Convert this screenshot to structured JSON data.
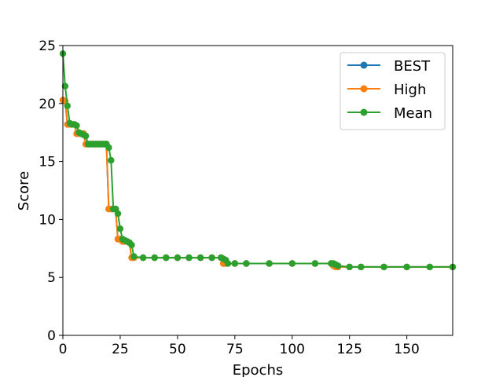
{
  "chart_data": {
    "type": "line",
    "xlabel": "Epochs",
    "ylabel": "Score",
    "xlim": [
      0,
      170
    ],
    "ylim": [
      0,
      25
    ],
    "xticks": [
      0,
      25,
      50,
      75,
      100,
      125,
      150
    ],
    "yticks": [
      0,
      5,
      10,
      15,
      20,
      25
    ],
    "grid": false,
    "legend_position": "top-right",
    "series": [
      {
        "name": "BEST",
        "color": "#1f77b4",
        "marker": "circle",
        "x": [
          0,
          1,
          2,
          3,
          4,
          5,
          6,
          7,
          8,
          9,
          10,
          11,
          12,
          13,
          14,
          15,
          16,
          17,
          18,
          19,
          20,
          21,
          22,
          23,
          24,
          25,
          26,
          27,
          28,
          29,
          30,
          31,
          35,
          40,
          45,
          50,
          55,
          60,
          65,
          69,
          70,
          71,
          75,
          80,
          90,
          100,
          110,
          117,
          118,
          119,
          120,
          125,
          130,
          140,
          150,
          160,
          170
        ],
        "y": [
          20.3,
          20.2,
          18.2,
          18.2,
          18.2,
          18.2,
          17.4,
          17.4,
          17.4,
          17.4,
          16.5,
          16.5,
          16.5,
          16.5,
          16.5,
          16.5,
          16.5,
          16.5,
          16.5,
          16.5,
          10.9,
          10.9,
          10.9,
          10.9,
          8.3,
          8.3,
          8.1,
          8.1,
          8.1,
          8.0,
          6.7,
          6.7,
          6.7,
          6.7,
          6.7,
          6.7,
          6.7,
          6.7,
          6.7,
          6.7,
          6.2,
          6.2,
          6.2,
          6.2,
          6.2,
          6.2,
          6.2,
          6.2,
          6.0,
          5.9,
          5.9,
          5.9,
          5.9,
          5.9,
          5.9,
          5.9,
          5.9
        ]
      },
      {
        "name": "High",
        "color": "#ff7f0e",
        "marker": "circle",
        "x": [
          0,
          1,
          2,
          3,
          4,
          5,
          6,
          7,
          8,
          9,
          10,
          11,
          12,
          13,
          14,
          15,
          16,
          17,
          18,
          19,
          20,
          21,
          22,
          23,
          24,
          25,
          26,
          27,
          28,
          29,
          30,
          31,
          35,
          40,
          45,
          50,
          55,
          60,
          65,
          69,
          70,
          71,
          75,
          80,
          90,
          100,
          110,
          117,
          118,
          119,
          120,
          125,
          130,
          140,
          150,
          160,
          170
        ],
        "y": [
          20.3,
          20.2,
          18.2,
          18.2,
          18.2,
          18.2,
          17.4,
          17.4,
          17.4,
          17.4,
          16.5,
          16.5,
          16.5,
          16.5,
          16.5,
          16.5,
          16.5,
          16.5,
          16.5,
          16.5,
          10.9,
          10.9,
          10.9,
          10.9,
          8.3,
          8.3,
          8.1,
          8.1,
          8.1,
          8.0,
          6.7,
          6.7,
          6.7,
          6.7,
          6.7,
          6.7,
          6.7,
          6.7,
          6.7,
          6.7,
          6.2,
          6.2,
          6.2,
          6.2,
          6.2,
          6.2,
          6.2,
          6.2,
          6.0,
          5.9,
          5.9,
          5.9,
          5.9,
          5.9,
          5.9,
          5.9,
          5.9
        ]
      },
      {
        "name": "Mean",
        "color": "#2ca02c",
        "marker": "circle",
        "x": [
          0,
          1,
          2,
          3,
          4,
          5,
          6,
          7,
          8,
          9,
          10,
          11,
          12,
          13,
          14,
          15,
          16,
          17,
          18,
          19,
          20,
          21,
          22,
          23,
          24,
          25,
          26,
          27,
          28,
          29,
          30,
          31,
          35,
          40,
          45,
          50,
          55,
          60,
          65,
          69,
          70,
          71,
          72,
          75,
          80,
          90,
          100,
          110,
          117,
          118,
          119,
          120,
          125,
          130,
          140,
          150,
          160,
          170
        ],
        "y": [
          24.3,
          21.5,
          19.8,
          18.3,
          18.2,
          18.2,
          18.1,
          17.5,
          17.4,
          17.3,
          17.2,
          16.5,
          16.5,
          16.5,
          16.5,
          16.5,
          16.5,
          16.5,
          16.5,
          16.5,
          16.2,
          15.1,
          10.9,
          10.9,
          10.5,
          9.2,
          8.3,
          8.2,
          8.1,
          8.0,
          7.8,
          6.8,
          6.7,
          6.7,
          6.7,
          6.7,
          6.7,
          6.7,
          6.7,
          6.7,
          6.6,
          6.5,
          6.2,
          6.2,
          6.2,
          6.2,
          6.2,
          6.2,
          6.2,
          6.2,
          6.1,
          6.0,
          5.9,
          5.9,
          5.9,
          5.9,
          5.9,
          5.9
        ]
      }
    ]
  }
}
